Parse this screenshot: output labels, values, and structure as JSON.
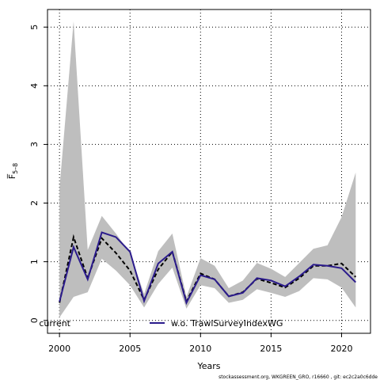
{
  "chart_data": {
    "type": "line",
    "xlabel": "Years",
    "ylabel": "F̅",
    "ylabel_sub": "5–8",
    "xlim": [
      1999.15,
      2022.05
    ],
    "ylim": [
      -0.22,
      5.3
    ],
    "x_ticks": [
      2000,
      2005,
      2010,
      2015,
      2020
    ],
    "y_ticks": [
      0,
      1,
      2,
      3,
      4,
      5
    ],
    "grid": true,
    "legend_position": "bottom",
    "colors": {
      "band": "#bebebe",
      "current": "#000000",
      "alt": "#2b1b8c"
    },
    "x": [
      2000,
      2001,
      2002,
      2003,
      2004,
      2005,
      2006,
      2007,
      2008,
      2009,
      2010,
      2011,
      2012,
      2013,
      2014,
      2015,
      2016,
      2017,
      2018,
      2019,
      2020,
      2021
    ],
    "band": {
      "lower": [
        0.05,
        0.4,
        0.48,
        1.05,
        0.85,
        0.6,
        0.22,
        0.62,
        0.9,
        0.2,
        0.6,
        0.55,
        0.3,
        0.35,
        0.53,
        0.47,
        0.4,
        0.5,
        0.72,
        0.7,
        0.56,
        0.22
      ],
      "upper": [
        2.25,
        5.1,
        1.2,
        1.78,
        1.48,
        1.15,
        0.45,
        1.18,
        1.48,
        0.4,
        1.06,
        0.93,
        0.55,
        0.68,
        0.98,
        0.88,
        0.74,
        0.98,
        1.22,
        1.28,
        1.76,
        2.52
      ]
    },
    "series": [
      {
        "name": "current",
        "values": [
          0.3,
          1.42,
          0.72,
          1.4,
          1.15,
          0.85,
          0.35,
          0.87,
          1.17,
          0.32,
          0.8,
          0.7,
          0.41,
          0.48,
          0.71,
          0.64,
          0.56,
          0.72,
          0.93,
          0.93,
          0.97,
          0.74
        ]
      },
      {
        "name": "w.o. TrawlSurveyIndexWG",
        "values": [
          0.32,
          1.25,
          0.7,
          1.5,
          1.42,
          1.17,
          0.33,
          0.97,
          1.17,
          0.3,
          0.77,
          0.7,
          0.41,
          0.47,
          0.72,
          0.68,
          0.58,
          0.75,
          0.95,
          0.93,
          0.89,
          0.65
        ]
      }
    ]
  },
  "legend": {
    "current_label": "current",
    "alt_label": "w.o. TrawlSurveyIndexWG"
  },
  "footer": "stockassessment.org, WKGREEN_GRO, r16660 , git: ec2c2a0c6dde"
}
